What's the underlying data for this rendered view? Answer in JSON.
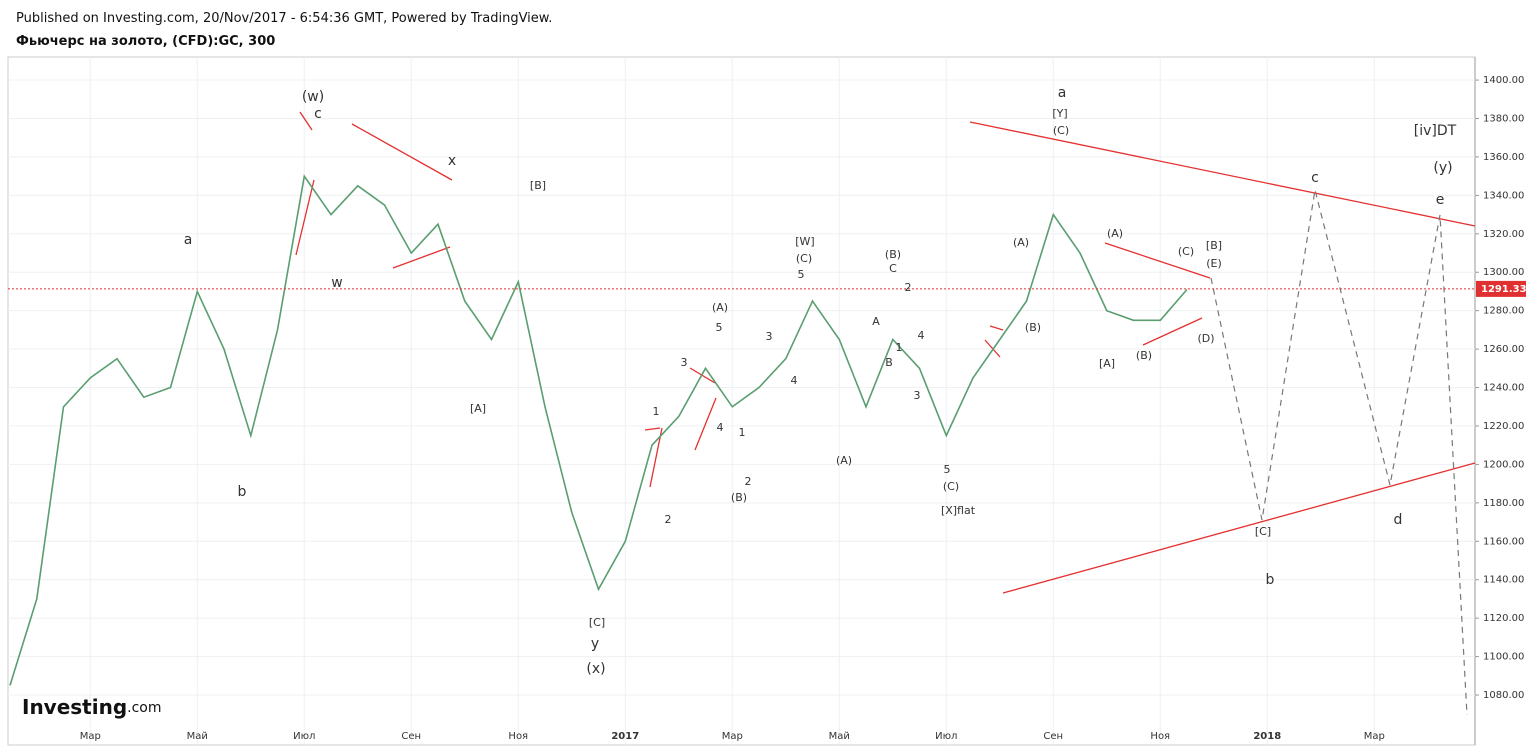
{
  "header": {
    "published": "Published on Investing.com, 20/Nov/2017 - 6:54:36 GMT, Powered by TradingView.",
    "instrument": "Фьючерс на золото, (CFD):GC, 300"
  },
  "chart_data": {
    "type": "line",
    "logo": "Investing",
    "logo_suffix": ".com",
    "categories": [
      null,
      null,
      null,
      "Мар",
      null,
      null,
      null,
      "Май",
      null,
      null,
      null,
      "Июл",
      null,
      null,
      null,
      "Сен",
      null,
      null,
      null,
      "Ноя",
      null,
      null,
      null,
      "2017",
      null,
      null,
      null,
      "Мар",
      null,
      null,
      null,
      "Май",
      null,
      null,
      null,
      "Июл",
      null,
      null,
      null,
      "Сен",
      null,
      null,
      null,
      "Ноя",
      null,
      null,
      null,
      "2018",
      null,
      null,
      null,
      "Мар",
      null,
      null,
      null
    ],
    "series": [
      {
        "name": "GC",
        "color": "#5a9e6f",
        "values": [
          1085,
          1130,
          1230,
          1245,
          1255,
          1235,
          1240,
          1290,
          1260,
          1215,
          1270,
          1350,
          1330,
          1345,
          1335,
          1310,
          1325,
          1285,
          1265,
          1295,
          1230,
          1175,
          1135,
          1160,
          1210,
          1225,
          1250,
          1230,
          1240,
          1255,
          1285,
          1265,
          1230,
          1265,
          1250,
          1215,
          1245,
          1265,
          1285,
          1330,
          1310,
          1280,
          1275,
          1275,
          1291,
          null,
          null,
          null,
          null,
          null,
          null,
          null,
          null,
          null,
          null
        ]
      }
    ],
    "current_price": 1291.33,
    "current_color": "#e03030",
    "ylim": [
      1054,
      1412
    ],
    "yticks": [
      {
        "value": 1080,
        "label": "1080.00"
      },
      {
        "value": 1100,
        "label": "1100.00"
      },
      {
        "value": 1120,
        "label": "1120.00"
      },
      {
        "value": 1140,
        "label": "1140.00"
      },
      {
        "value": 1160,
        "label": "1160.00"
      },
      {
        "value": 1180,
        "label": "1180.00"
      },
      {
        "value": 1200,
        "label": "1200.00"
      },
      {
        "value": 1220,
        "label": "1220.00"
      },
      {
        "value": 1240,
        "label": "1240.00"
      },
      {
        "value": 1260,
        "label": "1260.00"
      },
      {
        "value": 1280,
        "label": "1280.00"
      },
      {
        "value": 1300,
        "label": "1300.00"
      },
      {
        "value": 1320,
        "label": "1320.00"
      },
      {
        "value": 1340,
        "label": "1340.00"
      },
      {
        "value": 1360,
        "label": "1360.00"
      },
      {
        "value": 1380,
        "label": "1380.00"
      },
      {
        "value": 1400,
        "label": "1400.00"
      }
    ],
    "grid": true,
    "annotations": [
      "(w)",
      "c",
      "x",
      "a",
      "w",
      "b",
      "[B]",
      "[A]",
      "[C]",
      "y",
      "(x)",
      "1",
      "2",
      "3",
      "4",
      "(A)",
      "5",
      "1",
      "2",
      "(B)",
      "3",
      "4",
      "[W]",
      "(C)",
      "5",
      "(A)",
      "(B)",
      "C",
      "2",
      "A",
      "1",
      "B",
      "4",
      "3",
      "5",
      "(C)",
      "[X]flat",
      "(A)",
      "(B)",
      "a",
      "[Y]",
      "(C)",
      "(A)",
      "[A]",
      "(B)",
      "(C)",
      "[B]",
      "(E)",
      "(D)",
      "c",
      "[C]",
      "b",
      "d",
      "e",
      "(y)",
      "[iv]DT"
    ]
  }
}
